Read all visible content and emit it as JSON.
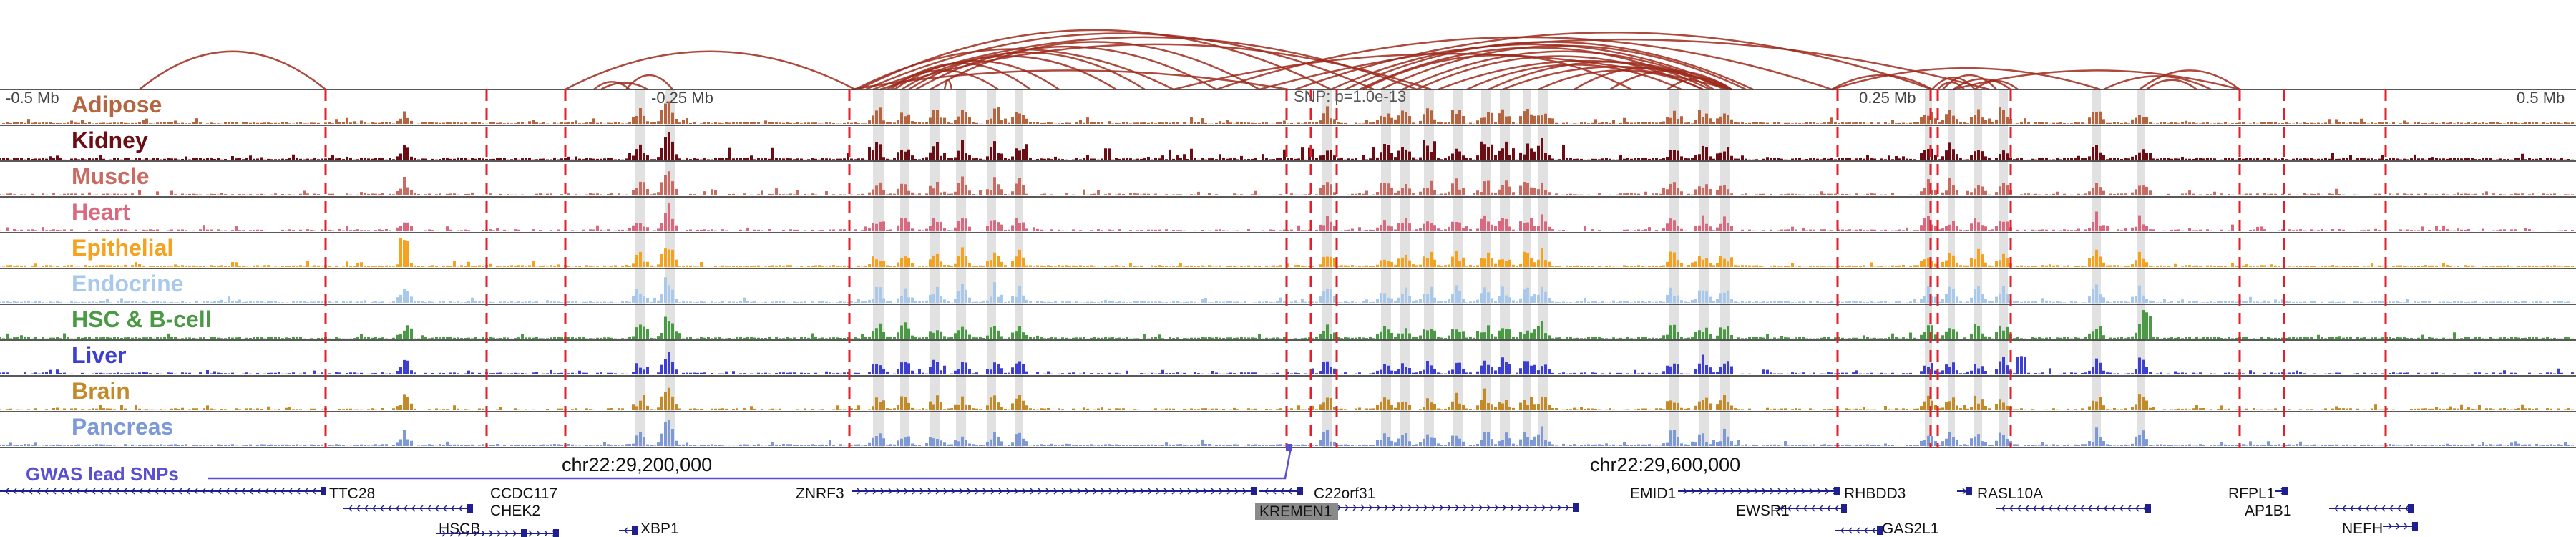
{
  "axis": {
    "ticks": [
      {
        "label": "-0.5 Mb",
        "pos": 0
      },
      {
        "label": "-0.25 Mb",
        "pos": 0.25
      },
      {
        "label": "0.25 Mb",
        "pos": 0.75
      },
      {
        "label": "0.5 Mb",
        "pos": 1.0
      }
    ],
    "snp_label": "SNP: p=1.0e-13"
  },
  "tracks": [
    {
      "name": "Adipose",
      "color": "#b5653f"
    },
    {
      "name": "Kidney",
      "color": "#6b0d14"
    },
    {
      "name": "Muscle",
      "color": "#c86b63"
    },
    {
      "name": "Heart",
      "color": "#d9697f"
    },
    {
      "name": "Epithelial",
      "color": "#f5a21e"
    },
    {
      "name": "Endocrine",
      "color": "#a8c9ec"
    },
    {
      "name": "HSC & B-cell",
      "color": "#4a9a45"
    },
    {
      "name": "Liver",
      "color": "#3c3fcf"
    },
    {
      "name": "Brain",
      "color": "#c38a2a"
    },
    {
      "name": "Pancreas",
      "color": "#7d9ad6"
    }
  ],
  "coordinates": [
    "chr22:29,200,000",
    "chr22:29,600,000"
  ],
  "gwas_label": "GWAS lead SNPs",
  "genes": [
    "TTC28",
    "CCDC117",
    "CHEK2",
    "HSCB",
    "XBP1",
    "ZNRF3",
    "C22orf31",
    "KREMEN1",
    "EMID1",
    "RHBDD3",
    "EWSR1",
    "GAS2L1",
    "RASL10A",
    "RFPL1",
    "AP1B1",
    "NEFH"
  ],
  "colors": {
    "loop": "#9e2a1c",
    "boundary": "#e0202a",
    "highlight": "#d9d9d9",
    "gwas": "#5a4fcf",
    "gene": "#1f1f8f"
  }
}
